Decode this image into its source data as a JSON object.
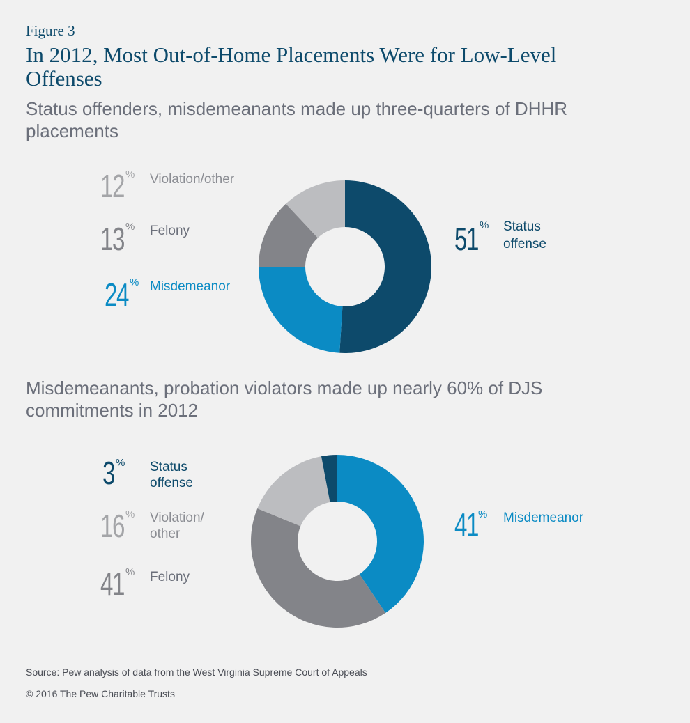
{
  "figure_label": "Figure 3",
  "title": "In 2012, Most Out-of-Home Placements Were for Low-Level Offenses",
  "colors": {
    "dark_navy": "#0d4a6b",
    "blue": "#0b8bc4",
    "dark_gray": "#838489",
    "light_gray": "#bcbdc0",
    "text_gray": "#6b6f7a"
  },
  "chart_data": [
    {
      "type": "pie",
      "subtitle": "Status offenders, misdemeanants made up three-quarters of DHHR placements",
      "slices": [
        {
          "label": "Status offense",
          "value": 51,
          "color": "#0d4a6b"
        },
        {
          "label": "Misdemeanor",
          "value": 24,
          "color": "#0b8bc4"
        },
        {
          "label": "Felony",
          "value": 13,
          "color": "#838489"
        },
        {
          "label": "Violation/other",
          "value": 12,
          "color": "#bcbdc0"
        }
      ],
      "labels": {
        "right": {
          "value": "51",
          "sign": "%",
          "line1": "Status",
          "line2": "offense"
        },
        "left": [
          {
            "value": "12",
            "sign": "%",
            "line1": "Violation/other",
            "line2": ""
          },
          {
            "value": "13",
            "sign": "%",
            "line1": "Felony",
            "line2": ""
          },
          {
            "value": "24",
            "sign": "%",
            "line1": "Misdemeanor",
            "line2": ""
          }
        ]
      }
    },
    {
      "type": "pie",
      "subtitle": "Misdemeanants, probation violators made up nearly 60% of DJS commitments in 2012",
      "slices": [
        {
          "label": "Misdemeanor",
          "value": 41,
          "color": "#0b8bc4"
        },
        {
          "label": "Felony",
          "value": 41,
          "color": "#838489"
        },
        {
          "label": "Violation/other",
          "value": 16,
          "color": "#bcbdc0"
        },
        {
          "label": "Status offense",
          "value": 3,
          "color": "#0d4a6b"
        }
      ],
      "labels": {
        "right": {
          "value": "41",
          "sign": "%",
          "line1": "Misdemeanor",
          "line2": ""
        },
        "left": [
          {
            "value": "3",
            "sign": "%",
            "line1": "Status",
            "line2": "offense"
          },
          {
            "value": "16",
            "sign": "%",
            "line1": "Violation/",
            "line2": "other"
          },
          {
            "value": "41",
            "sign": "%",
            "line1": "Felony",
            "line2": ""
          }
        ]
      }
    }
  ],
  "source": "Source: Pew analysis of data from the West Virginia Supreme Court of Appeals",
  "copyright": "© 2016 The Pew Charitable Trusts"
}
